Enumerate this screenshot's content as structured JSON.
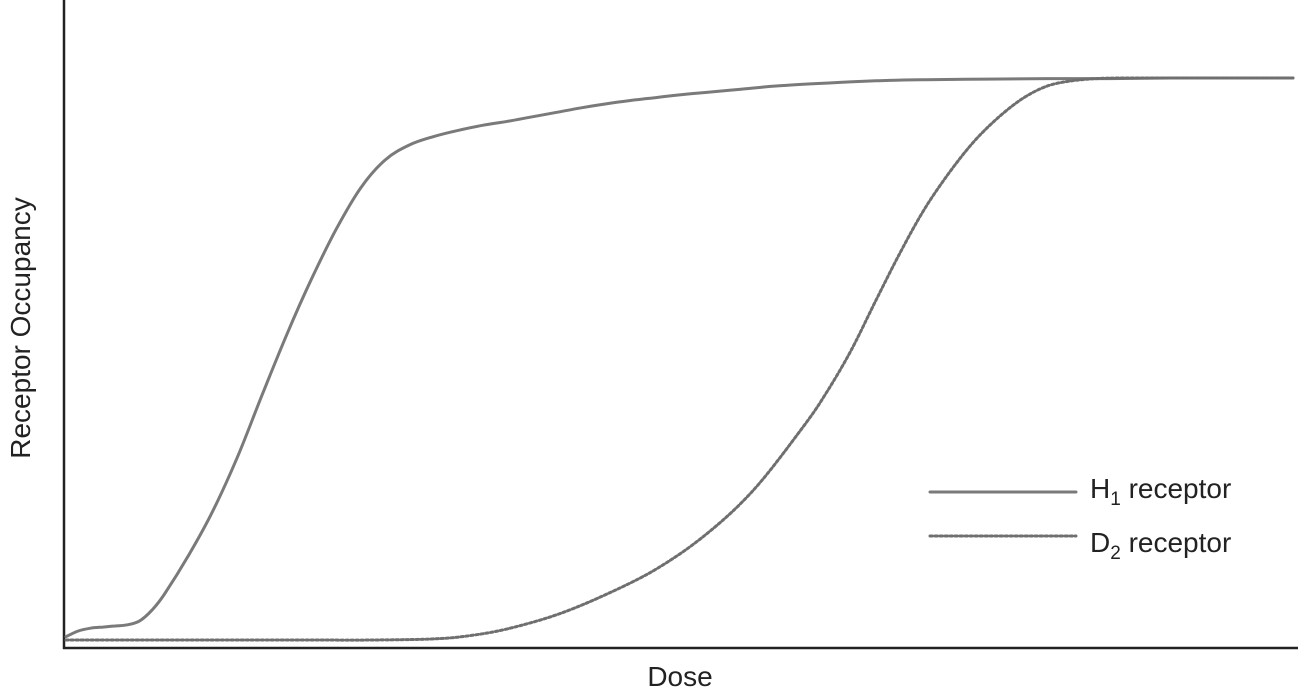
{
  "chart_data": {
    "type": "line",
    "title": "",
    "xlabel": "Dose",
    "ylabel": "Receptor Occupancy",
    "xlim": [
      0,
      100
    ],
    "ylim": [
      0,
      100
    ],
    "grid": false,
    "legend_position": "right",
    "series": [
      {
        "name": "H1 receptor",
        "name_base": "H",
        "name_sub": "1",
        "name_rest": " receptor",
        "color": "#7a7a7a",
        "style": "solid",
        "x": [
          0,
          1,
          2,
          3,
          4,
          5,
          6,
          7,
          8,
          10,
          12,
          14,
          16,
          18,
          20,
          22,
          24,
          26,
          28,
          30,
          32,
          34,
          36,
          38,
          40,
          42,
          44,
          46,
          48,
          50,
          52,
          55,
          58,
          62,
          66,
          70,
          75,
          80,
          85,
          90,
          95,
          100
        ],
        "y": [
          0.6,
          1.6,
          2.1,
          2.3,
          2.5,
          2.7,
          3.4,
          5.3,
          8.1,
          15.1,
          23.1,
          32.7,
          43.7,
          54.4,
          64.2,
          73.0,
          80.4,
          85.4,
          88.1,
          89.6,
          90.7,
          91.6,
          92.3,
          93.1,
          93.9,
          94.7,
          95.4,
          96.0,
          96.5,
          97.0,
          97.4,
          98.0,
          98.6,
          99.1,
          99.5,
          99.7,
          99.8,
          99.9,
          99.9,
          100.0,
          100.0,
          100.0
        ]
      },
      {
        "name": "D2 receptor",
        "name_base": "D",
        "name_sub": "2",
        "name_rest": " receptor",
        "color": "#6f6f6f",
        "style": "dotted",
        "x": [
          0,
          5,
          10,
          15,
          20,
          25,
          30,
          33,
          36,
          40,
          44,
          48,
          52,
          56,
          60,
          62,
          64,
          66,
          68,
          70,
          72,
          74,
          76,
          78,
          80,
          82,
          84,
          86,
          88,
          90,
          92,
          95,
          100
        ],
        "y": [
          0.0,
          0.0,
          0.0,
          0.0,
          0.0,
          0.0,
          0.2,
          0.8,
          2.0,
          4.5,
          8.1,
          12.5,
          18.5,
          26.6,
          37.7,
          44.1,
          51.6,
          60.4,
          69.0,
          76.8,
          83.2,
          88.7,
          93.0,
          96.4,
          98.6,
          99.5,
          99.9,
          100.0,
          100.0,
          100.0,
          100.0,
          100.0,
          100.0
        ]
      }
    ]
  }
}
